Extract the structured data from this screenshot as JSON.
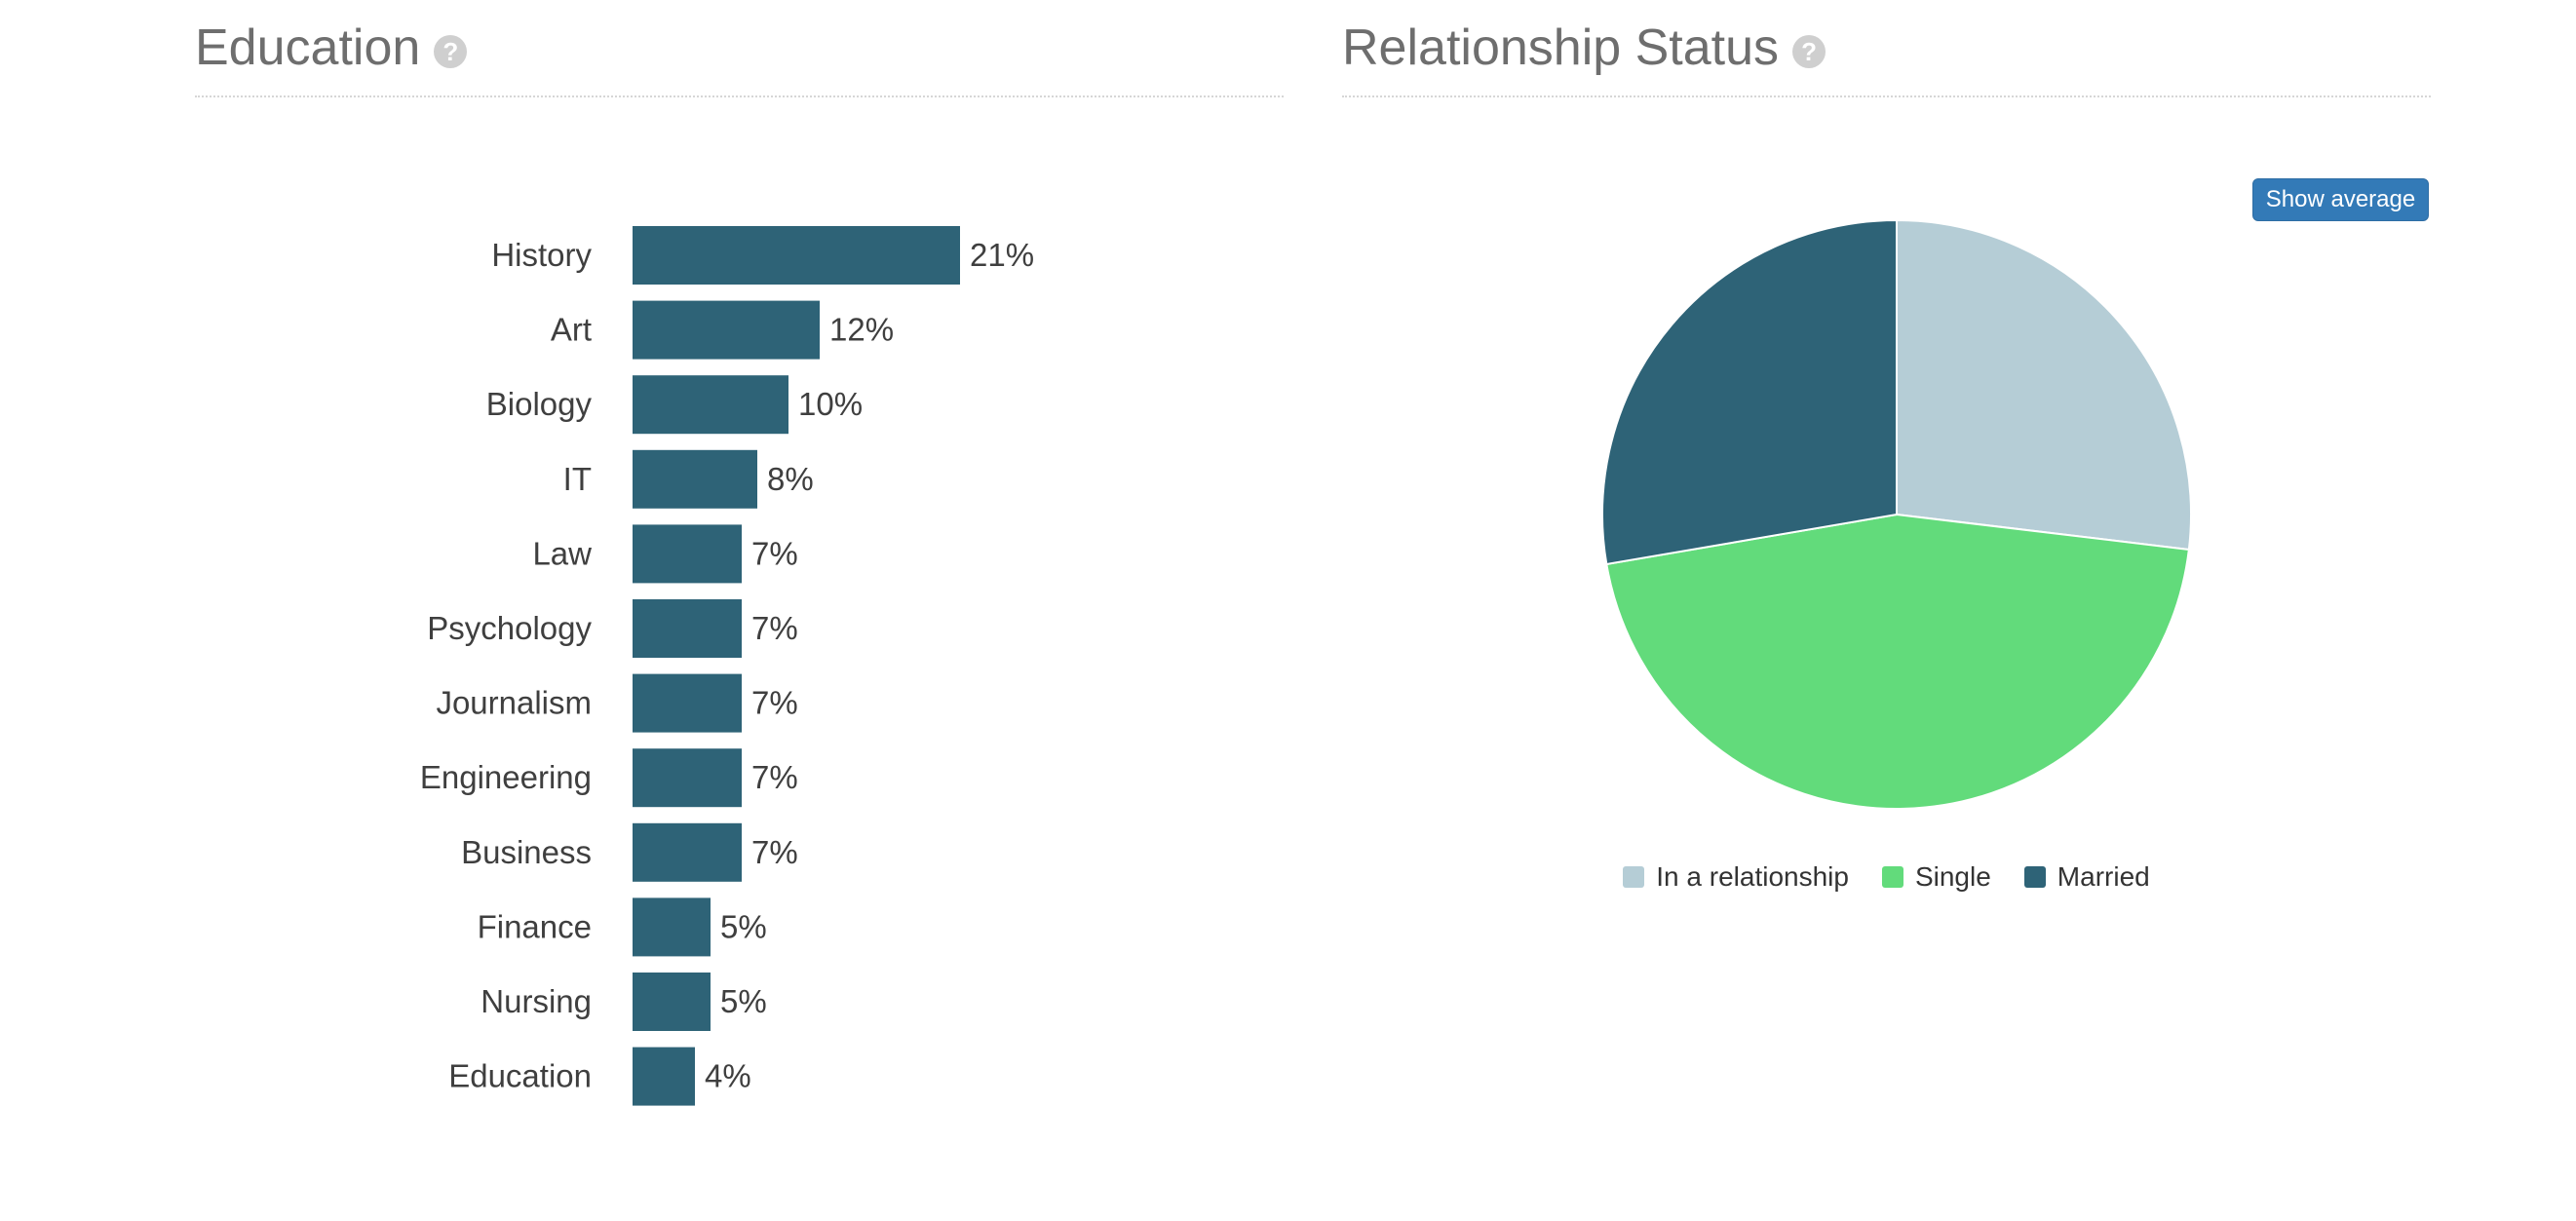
{
  "education": {
    "title": "Education",
    "help_icon": "question-circle-icon"
  },
  "relationship": {
    "title": "Relationship Status",
    "help_icon": "question-circle-icon",
    "show_average_label": "Show average"
  },
  "colors": {
    "bar": "#2e6377",
    "in_relationship": "#b5cdd6",
    "single": "#62db7b",
    "married": "#2e6377",
    "accent_button": "#337ab7"
  },
  "chart_data": [
    {
      "type": "bar",
      "orientation": "horizontal",
      "categories": [
        "History",
        "Art",
        "Biology",
        "IT",
        "Law",
        "Psychology",
        "Journalism",
        "Engineering",
        "Business",
        "Finance",
        "Nursing",
        "Education"
      ],
      "values": [
        21,
        12,
        10,
        8,
        7,
        7,
        7,
        7,
        7,
        5,
        5,
        4
      ],
      "labels": [
        "21%",
        "12%",
        "10%",
        "8%",
        "7%",
        "7%",
        "7%",
        "7%",
        "7%",
        "5%",
        "5%",
        "4%"
      ],
      "unit": "%",
      "grid": false,
      "data_labels": true
    },
    {
      "type": "pie",
      "categories": [
        "In a relationship",
        "Single",
        "Married"
      ],
      "values": [
        26.9,
        45.4,
        27.7
      ],
      "unit": "%",
      "legend": "bottom",
      "start_angle": "12 o'clock"
    }
  ]
}
